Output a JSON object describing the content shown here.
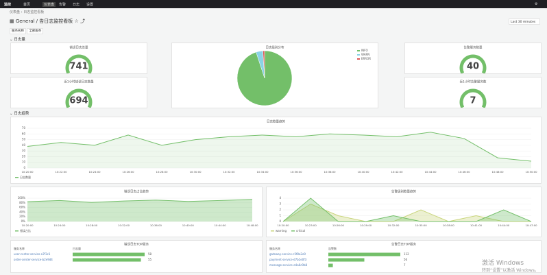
{
  "nav": {
    "logo": "监控",
    "items": [
      "首页",
      "仪表盘",
      "告警",
      "日志",
      "设置"
    ]
  },
  "breadcrumb": [
    "仪表盘",
    "日志监控看板"
  ],
  "header": {
    "folder": "General",
    "title": "告日志监控看板",
    "time_range": "Last 30 minutes"
  },
  "filter": {
    "label": "服务名称",
    "value": "全部服务"
  },
  "rows": [
    "日志量",
    "日志趋势"
  ],
  "chart_data": [
    {
      "type": "gauge",
      "title": "错误日志总量",
      "value": 741
    },
    {
      "type": "gauge",
      "title": "近1小时错误日志数量",
      "value": 694
    },
    {
      "type": "pie",
      "title": "日志级别分布",
      "categories": [
        "INFO",
        "WARN",
        "ERROR"
      ],
      "values": [
        95,
        4,
        1
      ],
      "colors": [
        "#73bf69",
        "#8ad3e6",
        "#e05a5a"
      ]
    },
    {
      "type": "gauge",
      "title": "告警服务数量",
      "value": 40
    },
    {
      "type": "gauge",
      "title": "近1小时告警服务数",
      "value": 7
    },
    {
      "type": "line",
      "title": "日志数量趋势",
      "categories": [
        "10:20:00",
        "10:22:00",
        "10:24:00",
        "10:26:00",
        "10:28:00",
        "10:30:00",
        "10:32:00",
        "10:34:00",
        "10:36:00",
        "10:38:00",
        "10:40:00",
        "10:42:00",
        "10:44:00",
        "10:46:00",
        "10:48:00",
        "10:50:00"
      ],
      "series": [
        {
          "name": "日志数量",
          "color": "#73bf69",
          "values": [
            38,
            45,
            40,
            58,
            40,
            50,
            55,
            58,
            55,
            60,
            58,
            55,
            63,
            52,
            18,
            12
          ]
        }
      ],
      "ylim": [
        0,
        70
      ],
      "yticks": [
        0,
        10,
        20,
        30,
        40,
        50,
        60,
        70
      ],
      "grid": true
    },
    {
      "type": "area",
      "title": "错误日志占比趋势",
      "categories": [
        "10:20:00",
        "10:24:00",
        "10:28:00",
        "10:32:00",
        "10:36:00",
        "10:40:00",
        "10:44:00",
        "10:48:00"
      ],
      "series": [
        {
          "name": "错误占比",
          "color": "#73bf69",
          "values": [
            85,
            90,
            82,
            88,
            92,
            86,
            90,
            95
          ]
        }
      ],
      "ylim": [
        0,
        100
      ],
      "yticks": [
        {
          "value": 0,
          "label": "0%"
        },
        {
          "value": 20,
          "label": "20%"
        },
        {
          "value": 40,
          "label": "40%"
        },
        {
          "value": 60,
          "label": "60%"
        },
        {
          "value": 80,
          "label": "80%"
        },
        {
          "value": 100,
          "label": "100%"
        }
      ],
      "grid": true
    },
    {
      "type": "area",
      "title": "告警级别数量趋势",
      "categories": [
        "10:20:00",
        "10:23:00",
        "10:26:00",
        "10:29:00",
        "10:32:00",
        "10:35:00",
        "10:38:00",
        "10:41:00",
        "10:44:00",
        "10:47:00"
      ],
      "series": [
        {
          "name": "warning",
          "color": "#c8d47a",
          "values": [
            0,
            3,
            1,
            0,
            0,
            2,
            0,
            1,
            0,
            0
          ]
        },
        {
          "name": "critical",
          "color": "#73bf69",
          "values": [
            0,
            4,
            0,
            0,
            1,
            0,
            0,
            0,
            2,
            0
          ]
        }
      ],
      "ylim": [
        0,
        4
      ],
      "yticks": [
        0,
        1,
        2,
        3,
        4
      ],
      "grid": true
    }
  ],
  "tables": [
    {
      "title": "错误日志TOP服务",
      "columns": [
        "服务名称",
        "日志量"
      ],
      "rows": [
        [
          "user-center-service-a7f3c1",
          "58"
        ],
        [
          "order-center-service-b2e9d4",
          "55"
        ]
      ]
    },
    {
      "title": "告警日志TOP服务",
      "columns": [
        "服务名称",
        "告警数"
      ],
      "rows": [
        [
          "gateway-service-c5f8a2e9",
          "112"
        ],
        [
          "payment-service-d7b1e0f3",
          "56"
        ],
        [
          "message-service-e4a6c9b8",
          "7"
        ]
      ]
    }
  ],
  "watermark": {
    "line1": "激活 Windows",
    "line2": "转到“设置”以激活 Windows。"
  }
}
